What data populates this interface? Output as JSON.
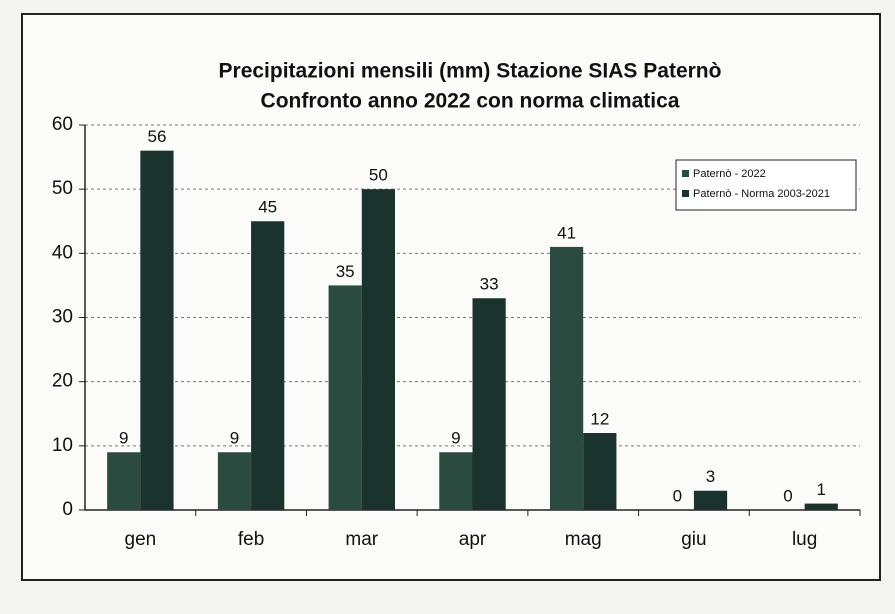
{
  "chart_data": {
    "type": "bar",
    "title": "Precipitazioni mensili (mm) Stazione SIAS Paternò",
    "subtitle": "Confronto anno 2022 con norma climatica",
    "categories": [
      "gen",
      "feb",
      "mar",
      "apr",
      "mag",
      "giu",
      "lug"
    ],
    "series": [
      {
        "name": "Paternò - 2022",
        "color": "#2b4a40",
        "values": [
          9,
          9,
          35,
          9,
          41,
          0,
          0
        ]
      },
      {
        "name": "Paternò - Norma 2003-2021",
        "color": "#1a332d",
        "values": [
          56,
          45,
          50,
          33,
          12,
          3,
          1
        ]
      }
    ],
    "ylim": [
      0,
      60
    ],
    "yticks": [
      0,
      10,
      20,
      30,
      40,
      50,
      60
    ],
    "grid": true,
    "legend": "top-right"
  }
}
